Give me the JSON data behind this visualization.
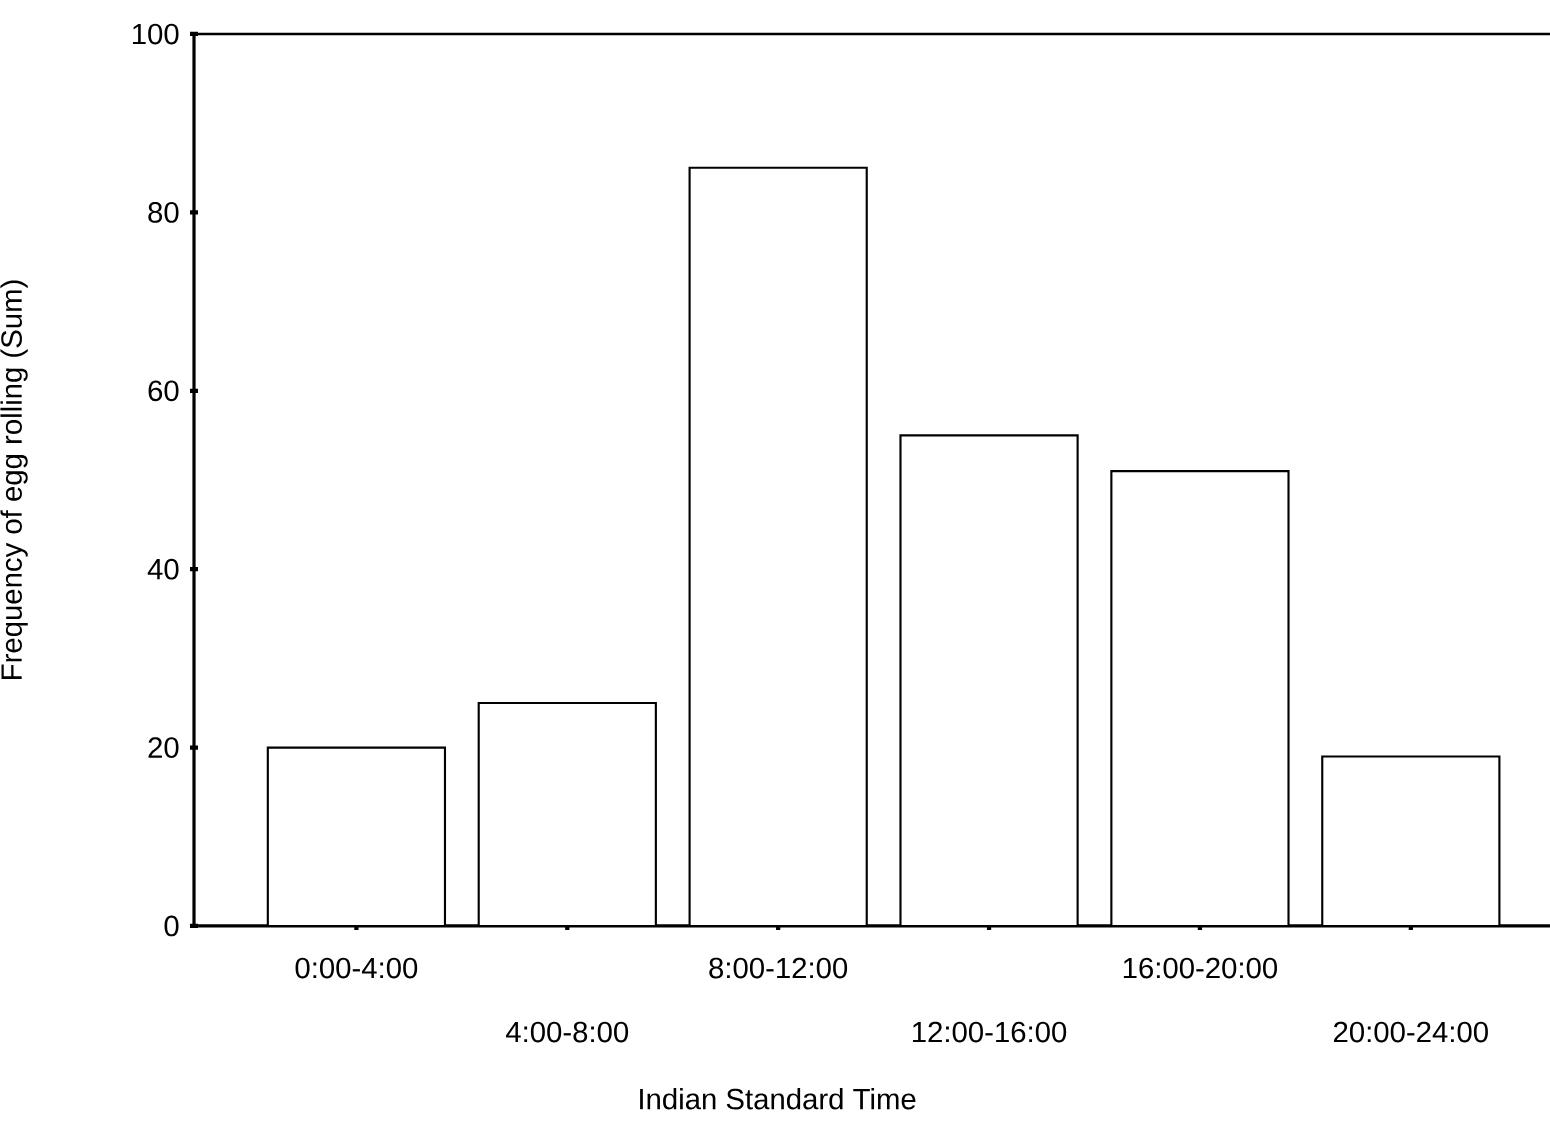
{
  "chart_data": {
    "type": "bar",
    "xlabel": "Indian Standard Time",
    "ylabel": "Frequency of egg rolling (Sum)",
    "categories": [
      "0:00-4:00",
      "4:00-8:00",
      "8:00-12:00",
      "12:00-16:00",
      "16:00-20:00",
      "20:00-24:00"
    ],
    "values": [
      20,
      25,
      85,
      55,
      51,
      19
    ],
    "color": "#ffffff",
    "ylim": [
      0,
      100
    ],
    "yticks": [
      0,
      20,
      40,
      60,
      80,
      100
    ],
    "grid": false
  }
}
